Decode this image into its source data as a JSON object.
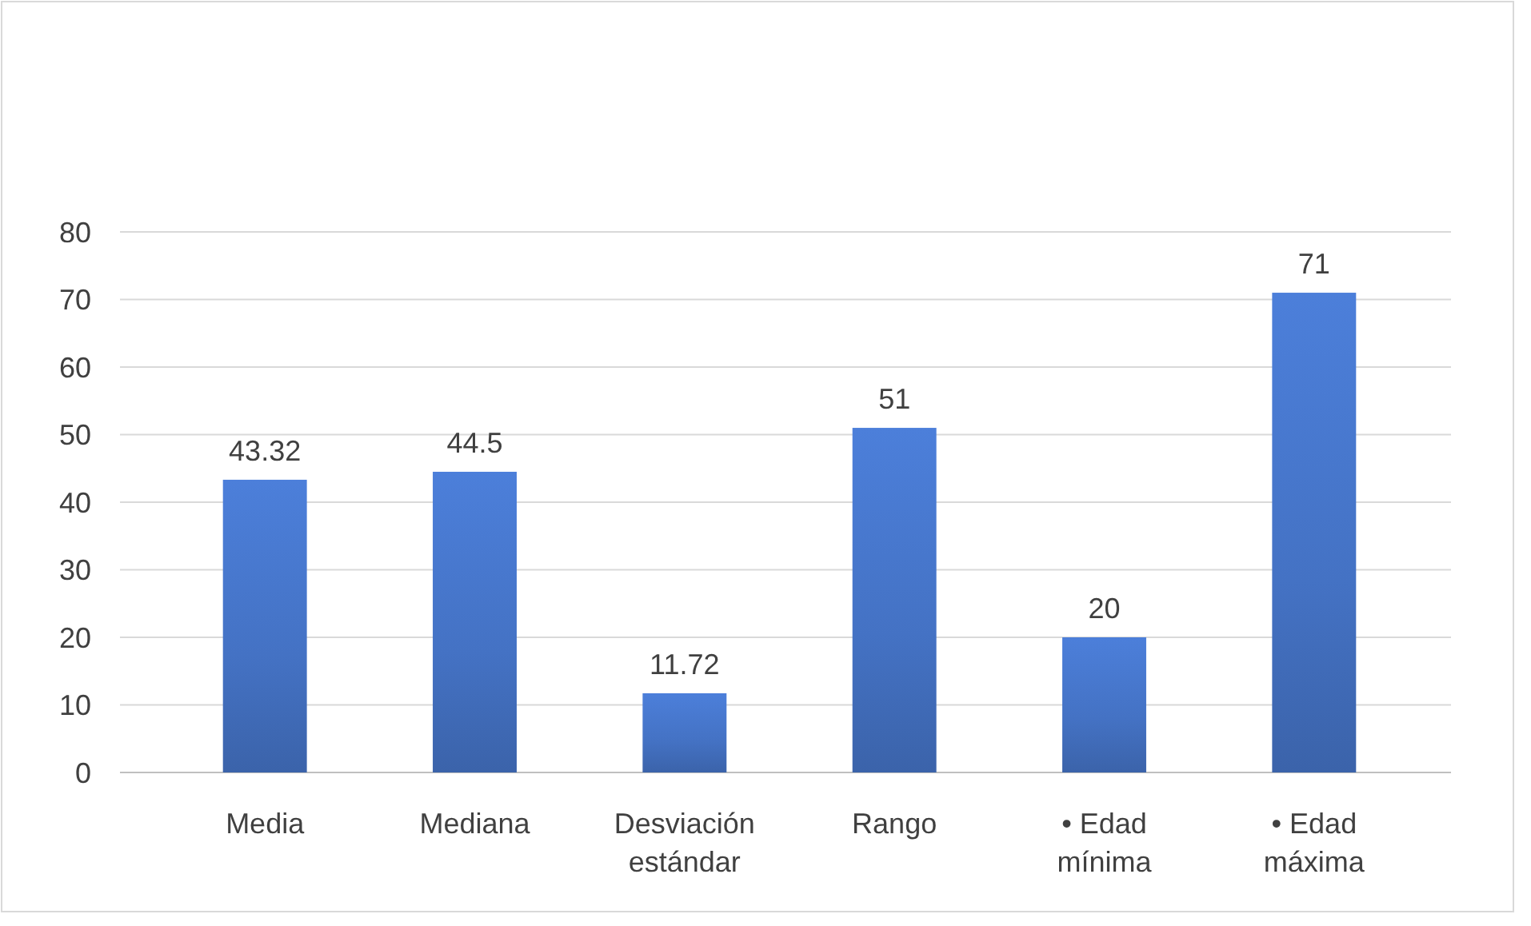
{
  "chart_data": {
    "type": "bar",
    "categories": [
      "Media",
      "Mediana",
      "Desviación estándar",
      "Rango",
      "• Edad mínima",
      "• Edad máxima"
    ],
    "values": [
      43.32,
      44.5,
      11.72,
      51,
      20,
      71
    ],
    "color": "#4472c4",
    "ylim": [
      0,
      80
    ],
    "yticks": [
      0,
      10,
      20,
      30,
      40,
      50,
      60,
      70,
      80
    ],
    "grid": "y",
    "data_labels": true
  }
}
